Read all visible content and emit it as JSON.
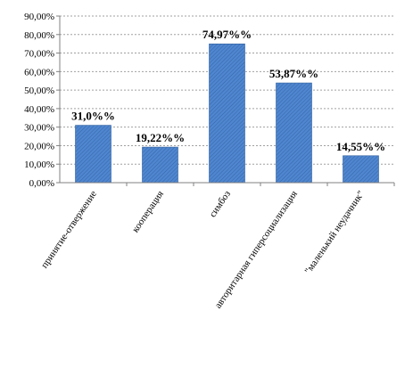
{
  "chart_data": {
    "type": "bar",
    "categories": [
      "принятие-отвержение",
      "кооперация",
      "симбоз",
      "авторитарная гиперсоциализация",
      "\"маленький неудачник\""
    ],
    "values": [
      31.0,
      19.22,
      74.97,
      53.87,
      14.55
    ],
    "data_labels": [
      "31,0%%",
      "19,22%%",
      "74,97%%",
      "53,87%%",
      "14,55%%"
    ],
    "yticks": [
      "0,00%",
      "10,00%",
      "20,00%",
      "30,00%",
      "40,00%",
      "50,00%",
      "60,00%",
      "70,00%",
      "80,00%",
      "90,00%"
    ],
    "ylim": [
      0,
      90
    ],
    "grid": true,
    "title": "",
    "xlabel": "",
    "ylabel": "",
    "colors": {
      "bar": "#4a7ec6",
      "bar_dark": "#2f5f9e",
      "grid": "#a0a0a0",
      "axis": "#808080"
    }
  }
}
